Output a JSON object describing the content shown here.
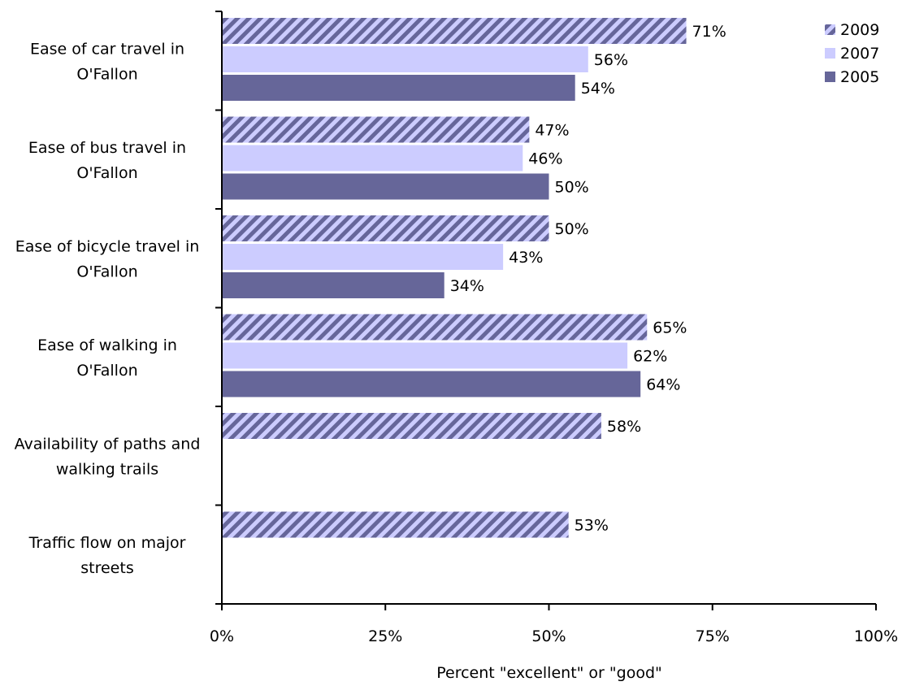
{
  "chart_data": {
    "type": "bar",
    "orientation": "horizontal",
    "categories": [
      [
        "Ease of car travel in",
        "O'Fallon"
      ],
      [
        "Ease of bus travel in",
        "O'Fallon"
      ],
      [
        "Ease of bicycle travel in",
        "O'Fallon"
      ],
      [
        "Ease of walking in",
        "O'Fallon"
      ],
      [
        "Availability of paths and",
        "walking trails"
      ],
      [
        "Traffic flow on major",
        "streets"
      ]
    ],
    "series": [
      {
        "name": "2009",
        "values": [
          71,
          47,
          50,
          65,
          58,
          53
        ],
        "labels": [
          "71%",
          "47%",
          "50%",
          "65%",
          "58%",
          "53%"
        ],
        "color": "#66669a",
        "fill": "hatch"
      },
      {
        "name": "2007",
        "values": [
          56,
          46,
          43,
          62,
          null,
          null
        ],
        "labels": [
          "56%",
          "46%",
          "43%",
          "62%",
          "",
          ""
        ],
        "color": "#ccccff",
        "fill": "solid"
      },
      {
        "name": "2005",
        "values": [
          54,
          50,
          34,
          64,
          null,
          null
        ],
        "labels": [
          "54%",
          "50%",
          "34%",
          "64%",
          "",
          ""
        ],
        "color": "#666699",
        "fill": "solid"
      }
    ],
    "x_ticks": [
      0,
      25,
      50,
      75,
      100
    ],
    "x_tick_labels": [
      "0%",
      "25%",
      "50%",
      "75%",
      "100%"
    ],
    "xlim": [
      0,
      100
    ],
    "xlabel": "Percent \"excellent\" or \"good\"",
    "ylabel": "",
    "title": "",
    "grid": false,
    "legend_position": "top-right"
  }
}
